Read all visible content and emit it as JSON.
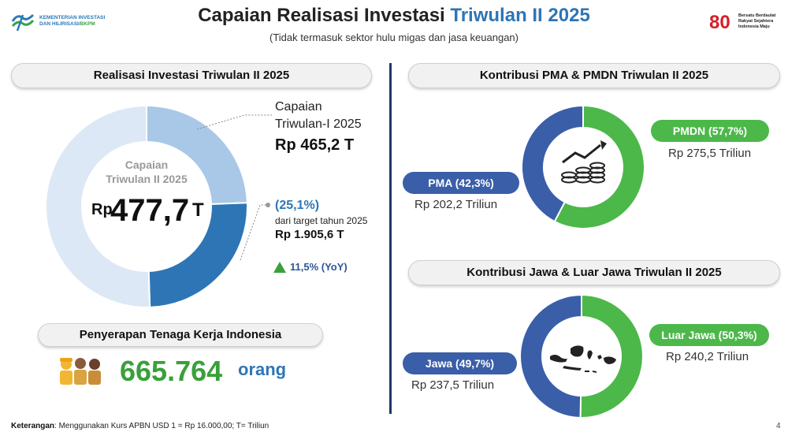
{
  "header": {
    "title_main": "Capaian Realisasi Investasi ",
    "title_highlight": "Triwulan II 2025",
    "subtitle": "(Tidak termasuk sektor hulu migas dan jasa keuangan)",
    "logo_left_line1": "KEMENTERIAN INVESTASI",
    "logo_left_line2": "DAN HILIRISASI/",
    "logo_left_line2b": "BKPM",
    "logo_right_number": "80",
    "logo_right_text": "Bersatu Berdaulat Rakyat Sejahtera Indonesia Maju"
  },
  "left": {
    "section_title": "Realisasi Investasi Triwulan II 2025",
    "center_label": "Capaian Triwulan II 2025",
    "center_prefix": "Rp",
    "center_value": "477,7",
    "center_suffix": "T",
    "tw1_label_line1": "Capaian",
    "tw1_label_line2": "Triwulan-I 2025",
    "tw1_value": "Rp 465,2 T",
    "pct_value": "(25,1%)",
    "pct_desc": "dari target tahun 2025",
    "target_value": "Rp 1.905,6 T",
    "yoy": "11,5% (YoY)",
    "labor_title": "Penyerapan Tenaga Kerja Indonesia",
    "labor_value": "665.764",
    "labor_unit": "orang"
  },
  "right": {
    "pma_title": "Kontribusi PMA & PMDN Triwulan II 2025",
    "pma_label": "PMA (42,3%)",
    "pma_value": "Rp 202,2 Triliun",
    "pmdn_label": "PMDN (57,7%)",
    "pmdn_value": "Rp 275,5 Triliun",
    "jawa_title": "Kontribusi Jawa & Luar Jawa Triwulan II 2025",
    "jawa_label": "Jawa (49,7%)",
    "jawa_value": "Rp 237,5 Triliun",
    "luar_label": "Luar Jawa (50,3%)",
    "luar_value": "Rp 240,2 Triliun"
  },
  "footer": {
    "note_bold": "Keterangan",
    "note_text": ": Menggunakan Kurs APBN USD 1 = Rp 16.000,00; T= Triliun",
    "page": "4"
  },
  "colors": {
    "tw1": "#a9c8e8",
    "tw2": "#2e75b6",
    "remaining": "#dce8f5",
    "pma": "#3a5ea8",
    "pmdn": "#4cb84a",
    "up": "#3aa03a"
  },
  "chart_data": [
    {
      "type": "pie",
      "variant": "donut",
      "slices": [
        {
          "name": "Capaian Triwulan-I 2025",
          "value": 465.2
        },
        {
          "name": "Capaian Triwulan II 2025",
          "value": 477.7
        },
        {
          "name": "",
          "value": 962.7
        }
      ],
      "total_target": 1905.6
    },
    {
      "type": "pie",
      "variant": "donut",
      "slices": [
        {
          "name": "PMA",
          "value": 42.3
        },
        {
          "name": "PMDN",
          "value": 57.7
        }
      ]
    },
    {
      "type": "pie",
      "variant": "donut",
      "slices": [
        {
          "name": "Jawa",
          "value": 49.7
        },
        {
          "name": "Luar Jawa",
          "value": 50.3
        }
      ]
    }
  ]
}
